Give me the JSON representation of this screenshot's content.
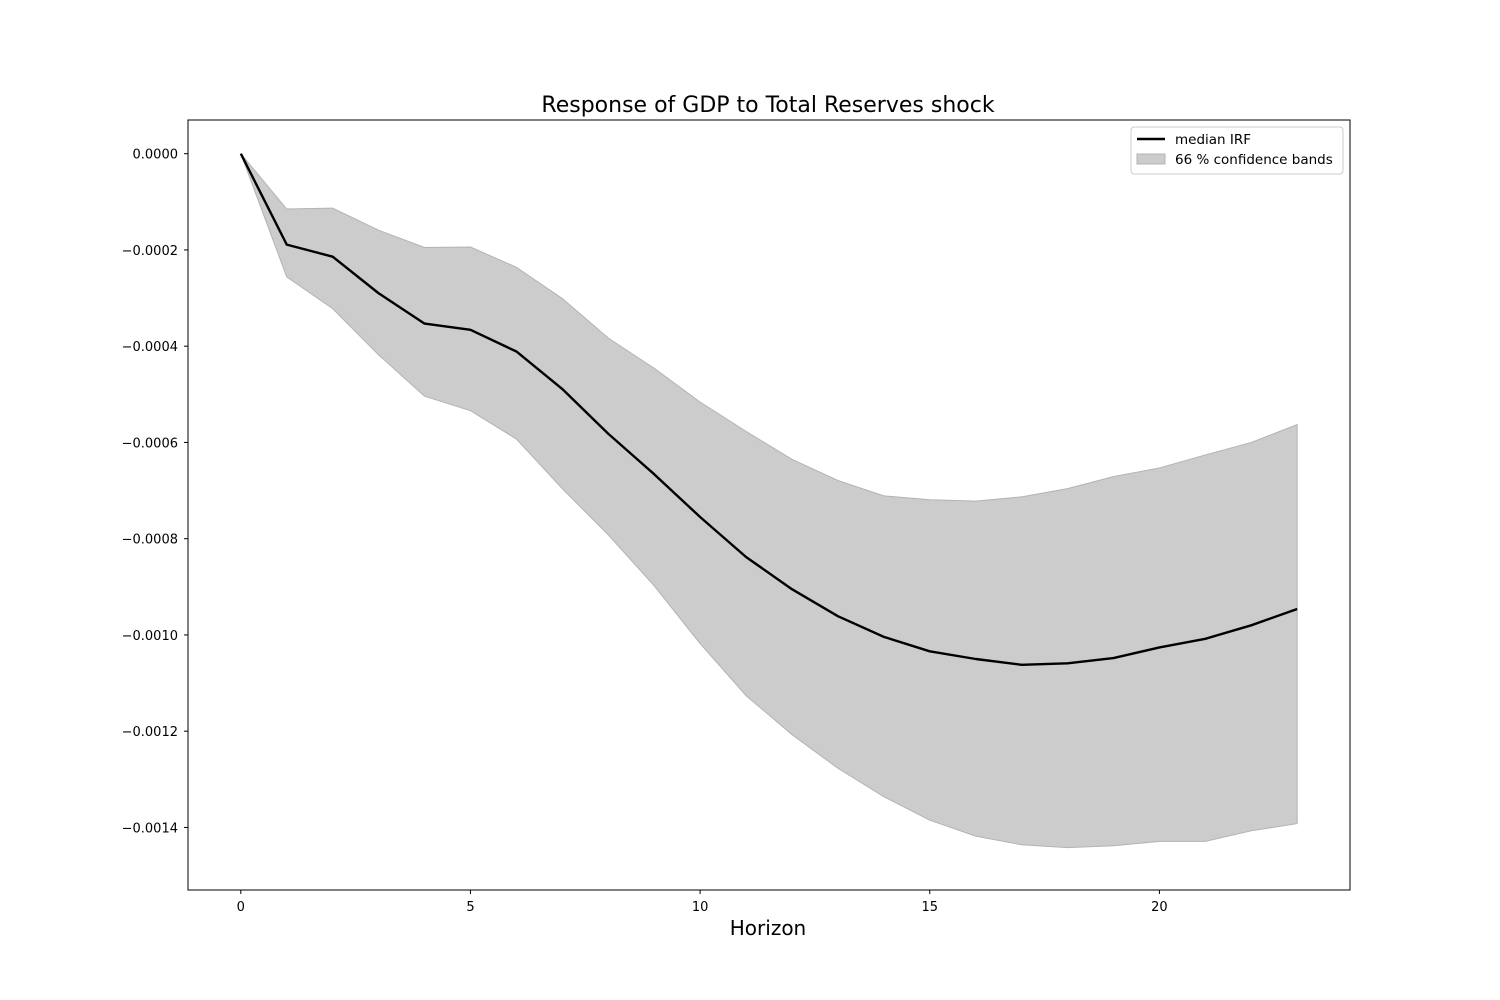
{
  "chart_data": {
    "type": "line",
    "title": "Response of GDP to Total Reserves shock",
    "xlabel": "Horizon",
    "ylabel": "",
    "xlim": [
      -1.15,
      24.15
    ],
    "ylim": [
      -0.00153,
      7e-05
    ],
    "xticks": [
      0,
      5,
      10,
      15,
      20
    ],
    "xtick_labels": [
      "0",
      "5",
      "10",
      "15",
      "20"
    ],
    "yticks": [
      0.0,
      -0.0002,
      -0.0004,
      -0.0006,
      -0.0008,
      -0.001,
      -0.0012,
      -0.0014
    ],
    "ytick_labels": [
      "0.0000",
      "−0.0002",
      "−0.0004",
      "−0.0006",
      "−0.0008",
      "−0.0010",
      "−0.0012",
      "−0.0014"
    ],
    "grid": false,
    "legend_position": "top-right",
    "colors": {
      "median": "#000000",
      "band_fill": "#cccccc",
      "band_edge": "#b3b3b3"
    },
    "x": [
      0,
      1,
      2,
      3,
      4,
      5,
      6,
      7,
      8,
      9,
      10,
      11,
      12,
      13,
      14,
      15,
      16,
      17,
      18,
      19,
      20,
      21,
      22,
      23
    ],
    "series": [
      {
        "name": "median IRF",
        "values": [
          0.0,
          -0.000189,
          -0.000214,
          -0.00029,
          -0.000353,
          -0.000366,
          -0.000411,
          -0.000489,
          -0.000582,
          -0.000666,
          -0.000755,
          -0.000838,
          -0.000905,
          -0.000961,
          -0.001004,
          -0.001034,
          -0.00105,
          -0.001062,
          -0.001059,
          -0.001048,
          -0.001026,
          -0.001008,
          -0.00098,
          -0.000946
        ]
      }
    ],
    "band": {
      "name": "66 % confidence bands",
      "upper": [
        0.0,
        -0.000115,
        -0.000113,
        -0.000159,
        -0.000195,
        -0.000194,
        -0.000236,
        -0.000301,
        -0.000383,
        -0.000446,
        -0.000516,
        -0.000577,
        -0.000635,
        -0.000679,
        -0.000711,
        -0.000719,
        -0.000722,
        -0.000713,
        -0.000696,
        -0.000671,
        -0.000653,
        -0.000626,
        -0.0006,
        -0.000563
      ],
      "lower": [
        0.0,
        -0.000256,
        -0.000322,
        -0.000418,
        -0.000504,
        -0.000534,
        -0.000593,
        -0.000696,
        -0.000792,
        -0.000898,
        -0.001018,
        -0.001126,
        -0.001207,
        -0.001277,
        -0.001336,
        -0.001385,
        -0.001418,
        -0.001436,
        -0.001442,
        -0.001438,
        -0.001429,
        -0.001429,
        -0.001407,
        -0.001392
      ]
    }
  }
}
